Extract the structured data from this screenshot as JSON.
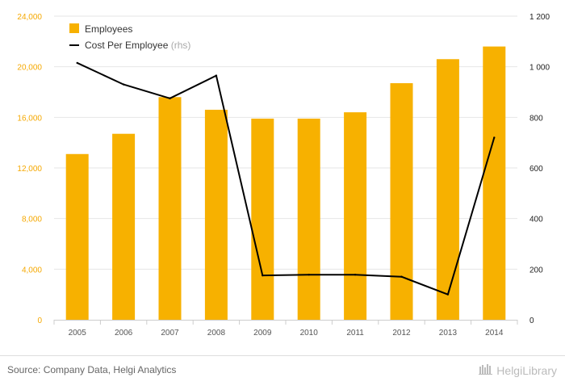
{
  "chart_data": {
    "type": "bar+line",
    "categories": [
      "2005",
      "2006",
      "2007",
      "2008",
      "2009",
      "2010",
      "2011",
      "2012",
      "2013",
      "2014"
    ],
    "series": [
      {
        "name": "Employees",
        "type": "bar",
        "axis": "left",
        "color": "#f7b100",
        "values": [
          13100,
          14700,
          17600,
          16600,
          15900,
          15900,
          16400,
          18700,
          20600,
          21600
        ]
      },
      {
        "name": "Cost Per Employee",
        "type": "line",
        "axis": "right",
        "color": "#000000",
        "values": [
          1015,
          930,
          875,
          965,
          175,
          178,
          178,
          170,
          100,
          720
        ]
      }
    ],
    "left_axis": {
      "min": 0,
      "max": 24000,
      "ticks": [
        "0",
        "4,000",
        "8,000",
        "12,000",
        "16,000",
        "20,000",
        "24,000"
      ]
    },
    "right_axis": {
      "min": 0,
      "max": 1200,
      "ticks": [
        "0",
        "200",
        "400",
        "600",
        "800",
        "1 000",
        "1 200"
      ]
    },
    "legend": {
      "placement": "top-left",
      "note": "(rhs)"
    },
    "grid": true
  },
  "footer": {
    "source": "Source: Company Data, Helgi Analytics",
    "brand": "HelgiLibrary"
  }
}
